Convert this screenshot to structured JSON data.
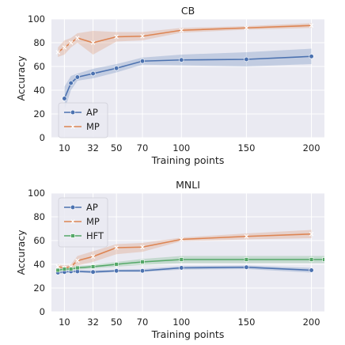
{
  "chart_data": [
    {
      "type": "line",
      "title": "CB",
      "xlabel": "Training points",
      "ylabel": "Accuracy",
      "xlim": [
        0,
        210
      ],
      "ylim": [
        0,
        100
      ],
      "xticks": [
        10,
        32,
        50,
        70,
        100,
        150,
        200
      ],
      "yticks": [
        0,
        20,
        40,
        60,
        80,
        100
      ],
      "grid": true,
      "legend": "lower-left",
      "series": [
        {
          "name": "AP",
          "color": "#4c72b0",
          "marker": "circle",
          "x": [
            10,
            15,
            20,
            32,
            50,
            70,
            100,
            150,
            200
          ],
          "y": [
            33,
            46,
            51,
            54,
            58.5,
            64.5,
            65.5,
            66,
            68.5
          ],
          "lower": [
            23,
            40,
            48,
            50,
            55,
            61.5,
            61,
            60,
            62
          ],
          "upper": [
            43,
            52,
            54,
            58,
            62,
            67.5,
            70,
            72,
            75
          ]
        },
        {
          "name": "MP",
          "color": "#dd8452",
          "marker": "x",
          "x": [
            5,
            10,
            15,
            20,
            32,
            50,
            70,
            100,
            150,
            200
          ],
          "y": [
            72,
            76,
            80,
            84,
            80,
            85,
            85.5,
            90.5,
            92.5,
            94.5
          ],
          "lower": [
            68,
            70,
            76,
            80,
            70,
            81,
            82,
            88.5,
            91,
            92.5
          ],
          "upper": [
            76,
            82,
            84,
            88,
            90,
            89,
            89,
            92.5,
            94,
            96.5
          ]
        }
      ]
    },
    {
      "type": "line",
      "title": "MNLI",
      "xlabel": "Training points",
      "ylabel": "Accuracy",
      "xlim": [
        0,
        210
      ],
      "ylim": [
        0,
        100
      ],
      "xticks": [
        10,
        32,
        50,
        70,
        100,
        150,
        200
      ],
      "yticks": [
        0,
        20,
        40,
        60,
        80,
        100
      ],
      "grid": true,
      "legend": "upper-left",
      "series": [
        {
          "name": "AP",
          "color": "#4c72b0",
          "marker": "circle",
          "x": [
            5,
            10,
            15,
            20,
            32,
            50,
            70,
            100,
            150,
            200
          ],
          "y": [
            33,
            33.5,
            34,
            34,
            33.5,
            34.5,
            34.5,
            37,
            37.5,
            35
          ],
          "lower": [
            32,
            32.5,
            33,
            33,
            32.5,
            33.5,
            33.5,
            35.5,
            36,
            33
          ],
          "upper": [
            34,
            34.5,
            35,
            35,
            35,
            35.5,
            36,
            38.5,
            39,
            37
          ]
        },
        {
          "name": "MP",
          "color": "#dd8452",
          "marker": "x",
          "x": [
            5,
            10,
            15,
            20,
            32,
            50,
            70,
            100,
            150,
            200
          ],
          "y": [
            38,
            37,
            38,
            43,
            46.5,
            54,
            54.5,
            61,
            63.5,
            65.5
          ],
          "lower": [
            36,
            35,
            36,
            39,
            42,
            48.5,
            50.5,
            59.5,
            61,
            62
          ],
          "upper": [
            40,
            39,
            40,
            47,
            51,
            57,
            58,
            62.5,
            66,
            69
          ]
        },
        {
          "name": "HFT",
          "color": "#55a868",
          "marker": "square",
          "x": [
            5,
            10,
            15,
            20,
            32,
            50,
            70,
            100,
            150,
            200,
            210
          ],
          "y": [
            35,
            36,
            36,
            37,
            38,
            40,
            42,
            44,
            44,
            44,
            44
          ],
          "lower": [
            34,
            34.5,
            35,
            35.5,
            36.5,
            38,
            39.5,
            41,
            41,
            41,
            41
          ],
          "upper": [
            36,
            37.5,
            37.5,
            38.5,
            39.5,
            42,
            44.5,
            47,
            47,
            47,
            47
          ]
        }
      ]
    }
  ]
}
